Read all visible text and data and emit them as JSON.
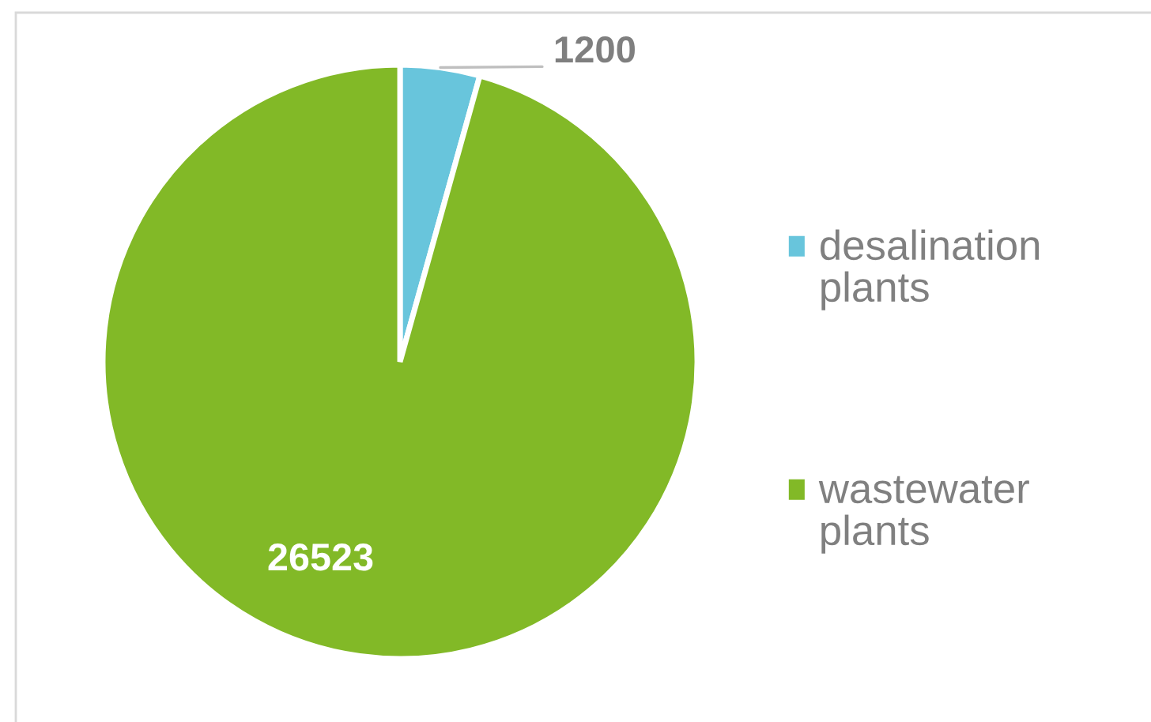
{
  "chart_data": {
    "type": "pie",
    "categories": [
      "desalination plants",
      "wastewater plants"
    ],
    "values": [
      1200,
      26523
    ],
    "colors": [
      "#68c5dc",
      "#82b927"
    ],
    "data_labels": true,
    "legend": "right"
  }
}
